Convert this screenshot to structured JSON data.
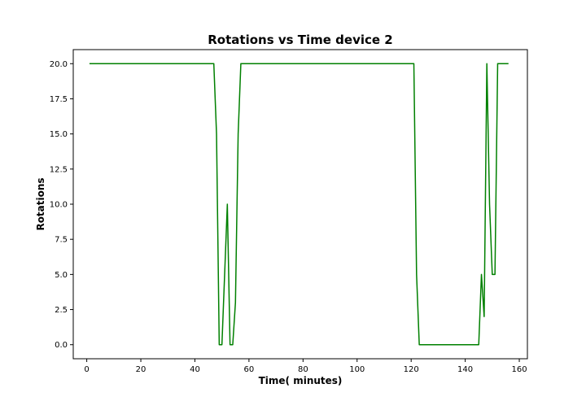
{
  "chart_data": {
    "type": "line",
    "title": "Rotations vs Time device 2",
    "xlabel": "Time( minutes)",
    "ylabel": "Rotations",
    "xlim": [
      -5,
      163
    ],
    "ylim": [
      -1,
      21
    ],
    "x_ticks": [
      0,
      20,
      40,
      60,
      80,
      100,
      120,
      140,
      160
    ],
    "y_ticks": [
      0.0,
      2.5,
      5.0,
      7.5,
      10.0,
      12.5,
      15.0,
      17.5,
      20.0
    ],
    "x_tick_labels": [
      "0",
      "20",
      "40",
      "60",
      "80",
      "100",
      "120",
      "140",
      "160"
    ],
    "y_tick_labels": [
      "0.0",
      "2.5",
      "5.0",
      "7.5",
      "10.0",
      "12.5",
      "15.0",
      "17.5",
      "20.0"
    ],
    "grid": false,
    "legend": "none",
    "series": [
      {
        "color": "#008000",
        "x": [
          1,
          47,
          48,
          49,
          50,
          51,
          52,
          53,
          54,
          55,
          56,
          57,
          121,
          122,
          123,
          145,
          146,
          147,
          148,
          149,
          150,
          151,
          152,
          156
        ],
        "y": [
          20,
          20,
          15,
          0,
          0,
          5,
          10,
          0,
          0,
          3,
          15,
          20,
          20,
          5,
          0,
          0,
          5,
          2,
          20,
          10,
          5,
          5,
          20,
          20
        ]
      }
    ]
  }
}
